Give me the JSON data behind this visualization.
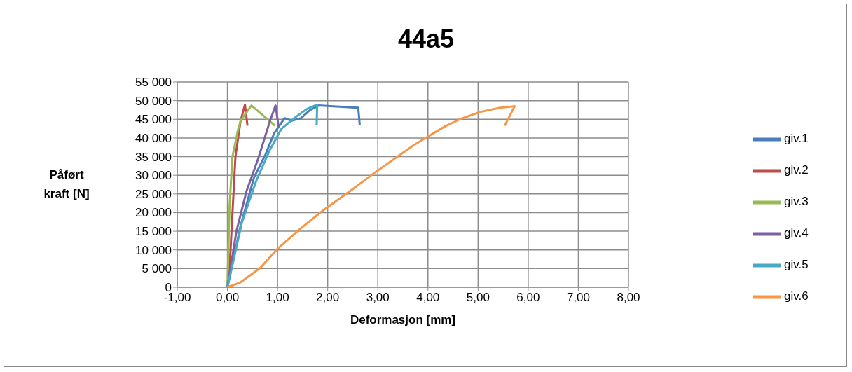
{
  "chart_data": {
    "type": "line",
    "title": "44a5",
    "xlabel": "Deformasjon [mm]",
    "ylabel": "Påført kraft [N]",
    "xlim": [
      -1,
      8
    ],
    "xticks": [
      {
        "value": -1,
        "label": "-1,00"
      },
      {
        "value": 0,
        "label": "0,00"
      },
      {
        "value": 1,
        "label": "1,00"
      },
      {
        "value": 2,
        "label": "2,00"
      },
      {
        "value": 3,
        "label": "3,00"
      },
      {
        "value": 4,
        "label": "4,00"
      },
      {
        "value": 5,
        "label": "5,00"
      },
      {
        "value": 6,
        "label": "6,00"
      },
      {
        "value": 7,
        "label": "7,00"
      },
      {
        "value": 8,
        "label": "8,00"
      }
    ],
    "ylim": [
      0,
      55000
    ],
    "yticks": [
      {
        "value": 0,
        "label": "0"
      },
      {
        "value": 5000,
        "label": "5 000"
      },
      {
        "value": 10000,
        "label": "10 000"
      },
      {
        "value": 15000,
        "label": "15 000"
      },
      {
        "value": 20000,
        "label": "20 000"
      },
      {
        "value": 25000,
        "label": "25 000"
      },
      {
        "value": 30000,
        "label": "30 000"
      },
      {
        "value": 35000,
        "label": "35 000"
      },
      {
        "value": 40000,
        "label": "40 000"
      },
      {
        "value": 45000,
        "label": "45 000"
      },
      {
        "value": 50000,
        "label": "50 000"
      },
      {
        "value": 55000,
        "label": "55 000"
      }
    ],
    "grid": true,
    "legend": "right",
    "marker": "none",
    "line_style": "solid",
    "series": [
      {
        "name": "giv.1",
        "color": "#4a7ebb",
        "x": [
          0,
          0.26,
          0.53,
          0.76,
          0.93,
          1.14,
          1.28,
          1.47,
          1.64,
          1.82,
          2.61,
          2.64
        ],
        "values": [
          0,
          16300,
          29400,
          35600,
          41200,
          45300,
          44600,
          45300,
          47400,
          48700,
          48100,
          43400
        ]
      },
      {
        "name": "giv.2",
        "color": "#be4b48",
        "x": [
          0,
          0.06,
          0.16,
          0.26,
          0.35,
          0.4
        ],
        "values": [
          0,
          9400,
          35000,
          44400,
          48900,
          43300
        ]
      },
      {
        "name": "giv.3",
        "color": "#98b954",
        "x": [
          0,
          0.04,
          0.1,
          0.22,
          0.28,
          0.48,
          0.95
        ],
        "values": [
          0,
          21200,
          35000,
          42700,
          45000,
          48700,
          43300
        ]
      },
      {
        "name": "giv.4",
        "color": "#7d60a0",
        "x": [
          0,
          0.18,
          0.38,
          0.61,
          0.85,
          0.96,
          1.02
        ],
        "values": [
          0,
          15000,
          25700,
          34300,
          44600,
          48700,
          43100
        ]
      },
      {
        "name": "giv.5",
        "color": "#46aac5",
        "x": [
          0,
          0.29,
          0.58,
          0.85,
          1.08,
          1.35,
          1.59,
          1.79,
          1.78
        ],
        "values": [
          0,
          17400,
          28700,
          36900,
          42500,
          45500,
          47800,
          48900,
          43400
        ]
      },
      {
        "name": "giv.6",
        "color": "#f79646",
        "x": [
          0,
          0.26,
          0.65,
          1.0,
          1.44,
          1.91,
          2.49,
          2.96,
          3.71,
          3.99,
          4.34,
          4.65,
          5.05,
          5.44,
          5.73,
          5.53
        ],
        "values": [
          0,
          1300,
          5100,
          10300,
          15500,
          20600,
          26200,
          30900,
          38000,
          40300,
          43100,
          45100,
          47000,
          48100,
          48500,
          43300
        ]
      }
    ]
  }
}
